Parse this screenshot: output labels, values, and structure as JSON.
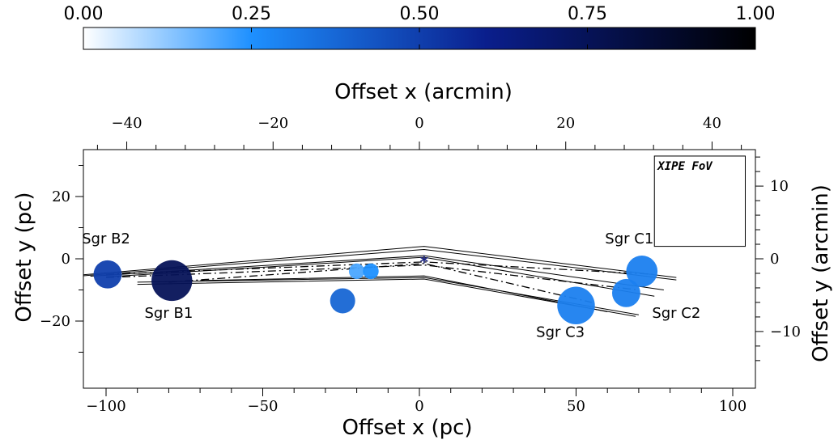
{
  "chart_data": {
    "type": "scatter",
    "colorbar": {
      "ticks": [
        "0.00",
        "0.25",
        "0.50",
        "0.75",
        "1.00"
      ],
      "range": [
        0,
        1
      ],
      "colors": [
        "#ffffff",
        "#1e90ff",
        "#0a1e8c",
        "#000000"
      ]
    },
    "axes": {
      "bottom": {
        "label": "Offset x (pc)",
        "range": [
          -108,
          107
        ],
        "ticks": [
          -100,
          -50,
          0,
          50,
          100
        ],
        "tick_labels": [
          "−100",
          "−50",
          "0",
          "50",
          "100"
        ]
      },
      "left": {
        "label": "Offset y (pc)",
        "range": [
          -34,
          34
        ],
        "ticks": [
          -20,
          0,
          20
        ],
        "tick_labels": [
          "−20",
          "0",
          "20"
        ]
      },
      "top": {
        "label": "Offset x (arcmin)",
        "ticks": [
          -40,
          -20,
          0,
          20,
          40
        ],
        "tick_labels": [
          "−40",
          "−20",
          "0",
          "20",
          "40"
        ]
      },
      "right": {
        "label": "Offset y (arcmin)",
        "ticks": [
          -10,
          0,
          10
        ],
        "tick_labels": [
          "−10",
          "0",
          "10"
        ]
      }
    },
    "clouds": [
      {
        "name": "Sgr B2",
        "x": -99.5,
        "y": -5,
        "radius": 4.5,
        "value": 0.5,
        "label_x": -100,
        "label_y": 5
      },
      {
        "name": "Sgr B1",
        "x": -79,
        "y": -7,
        "radius": 6.5,
        "value": 0.75,
        "label_x": -80,
        "label_y": -19
      },
      {
        "name": "",
        "x": -20,
        "y": -4,
        "radius": 2.5,
        "value": 0.2
      },
      {
        "name": "",
        "x": -15.5,
        "y": -4,
        "radius": 2.5,
        "value": 0.25
      },
      {
        "name": "",
        "x": -24.5,
        "y": -13.5,
        "radius": 4,
        "value": 0.38
      },
      {
        "name": "Sgr C1",
        "x": 71,
        "y": -4,
        "radius": 5,
        "value": 0.3,
        "label_x": 67,
        "label_y": 5
      },
      {
        "name": "Sgr C2",
        "x": 66,
        "y": -11,
        "radius": 4.5,
        "value": 0.3,
        "label_x": 82,
        "label_y": -19
      },
      {
        "name": "Sgr C3",
        "x": 50,
        "y": -15,
        "radius": 6,
        "value": 0.3,
        "label_x": 45,
        "label_y": -25
      }
    ],
    "center_marker": {
      "symbol": "*",
      "x": 1.5,
      "y": -1
    },
    "fov_box": {
      "label": "XIPE FoV",
      "x0": 75,
      "x1": 104,
      "y0": 4,
      "y1": 33
    }
  }
}
